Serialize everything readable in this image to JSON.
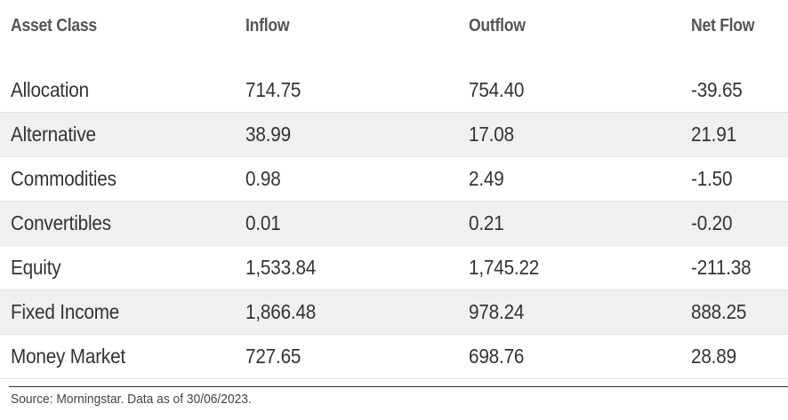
{
  "chart_data": {
    "type": "table",
    "columns": [
      "Asset Class",
      "Inflow",
      "Outflow",
      "Net Flow"
    ],
    "rows": [
      [
        "Allocation",
        "714.75",
        "754.40",
        "-39.65"
      ],
      [
        "Alternative",
        "38.99",
        "17.08",
        "21.91"
      ],
      [
        "Commodities",
        "0.98",
        "2.49",
        "-1.50"
      ],
      [
        "Convertibles",
        "0.01",
        "0.21",
        "-0.20"
      ],
      [
        "Equity",
        "1,533.84",
        "1,745.22",
        "-211.38"
      ],
      [
        "Fixed Income",
        "1,866.48",
        "978.24",
        "888.25"
      ],
      [
        "Money Market",
        "727.65",
        "698.76",
        "28.89"
      ]
    ],
    "source": "Source: Morningstar. Data as of 30/06/2023."
  }
}
